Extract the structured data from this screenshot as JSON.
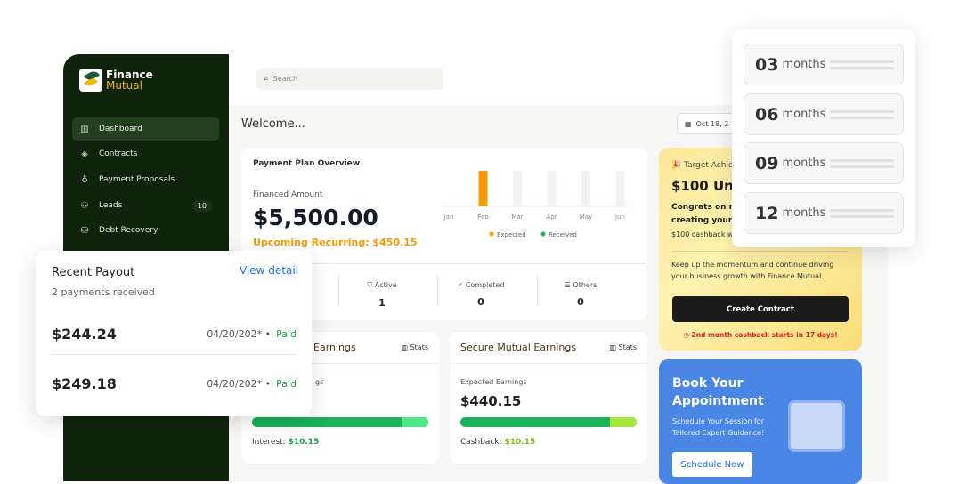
{
  "brand": {
    "line1": "Finance",
    "line2": "Mutual"
  },
  "sidebar": {
    "items": [
      {
        "label": "Dashboard",
        "icon": "bar-chart-icon",
        "active": true
      },
      {
        "label": "Contracts",
        "icon": "layers-icon"
      },
      {
        "label": "Payment Proposals",
        "icon": "award-icon"
      },
      {
        "label": "Leads",
        "icon": "users-icon",
        "badge": "10"
      },
      {
        "label": "Debt Recovery",
        "icon": "hand-coins-icon"
      }
    ]
  },
  "header": {
    "search_placeholder": "Search",
    "welcome": "Welcome...",
    "date": "Oct 18, 2"
  },
  "plan": {
    "title": "Payment Plan Overview",
    "financed_label": "Financed Amount",
    "financed_value": "$5,500.00",
    "upcoming": "Upcoming Recurring: $450.15",
    "stats": [
      {
        "label": "Active",
        "value": "1"
      },
      {
        "label": "Completed",
        "value": "0"
      },
      {
        "label": "Others",
        "value": "0"
      }
    ]
  },
  "chart_data": {
    "type": "bar",
    "categories": [
      "Jan",
      "Feb",
      "Mar",
      "Apr",
      "May",
      "Jun"
    ],
    "series": [
      {
        "name": "Expected",
        "values": [
          0,
          1,
          0,
          0,
          0,
          0
        ],
        "color": "#f39c0b"
      },
      {
        "name": "Received",
        "values": [
          0,
          0,
          0,
          0,
          0,
          0
        ],
        "color": "#1ab25a"
      }
    ],
    "legend": "bottom",
    "grid": false
  },
  "gold": {
    "kicker": "Target Achiev",
    "title": "$100 Unl",
    "congrats1": "Congrats on r",
    "congrats2": "creating your",
    "cashback": "$100 cashback w",
    "body": "Keep up the momentum and continue driving your business growth with Finance Mutual.",
    "button": "Create Contract",
    "countdown": "2nd month cashback starts in 17 days!"
  },
  "blue": {
    "title1": "Book Your",
    "title2": "Appointment",
    "body1": "Schedule Your Session for",
    "body2": "Tailored Expert Guidance!",
    "button": "Schedule Now"
  },
  "earnings": [
    {
      "title": "Earnings",
      "stats": "Stats",
      "label": "gs",
      "value": "",
      "foot_label": "Interest: ",
      "foot_value": "$10.15",
      "progress": 85,
      "accent": "#4ee88a"
    },
    {
      "title": "Secure Mutual Earnings",
      "stats": "Stats",
      "label": "Expected Earnings",
      "value": "$440.15",
      "foot_label": "Cashback: ",
      "foot_value": "$10.15",
      "progress": 85,
      "accent": "#a5e83a"
    }
  ],
  "months": [
    {
      "n": "03",
      "u": "months"
    },
    {
      "n": "06",
      "u": "months"
    },
    {
      "n": "09",
      "u": "months"
    },
    {
      "n": "12",
      "u": "months"
    }
  ],
  "payout": {
    "title": "Recent Payout",
    "link": "View detail",
    "sub": "2 payments received",
    "rows": [
      {
        "amount": "$244.24",
        "date": "04/20/202* •",
        "status": "Paid"
      },
      {
        "amount": "$249.18",
        "date": "04/20/202* •",
        "status": "Paid"
      }
    ]
  }
}
